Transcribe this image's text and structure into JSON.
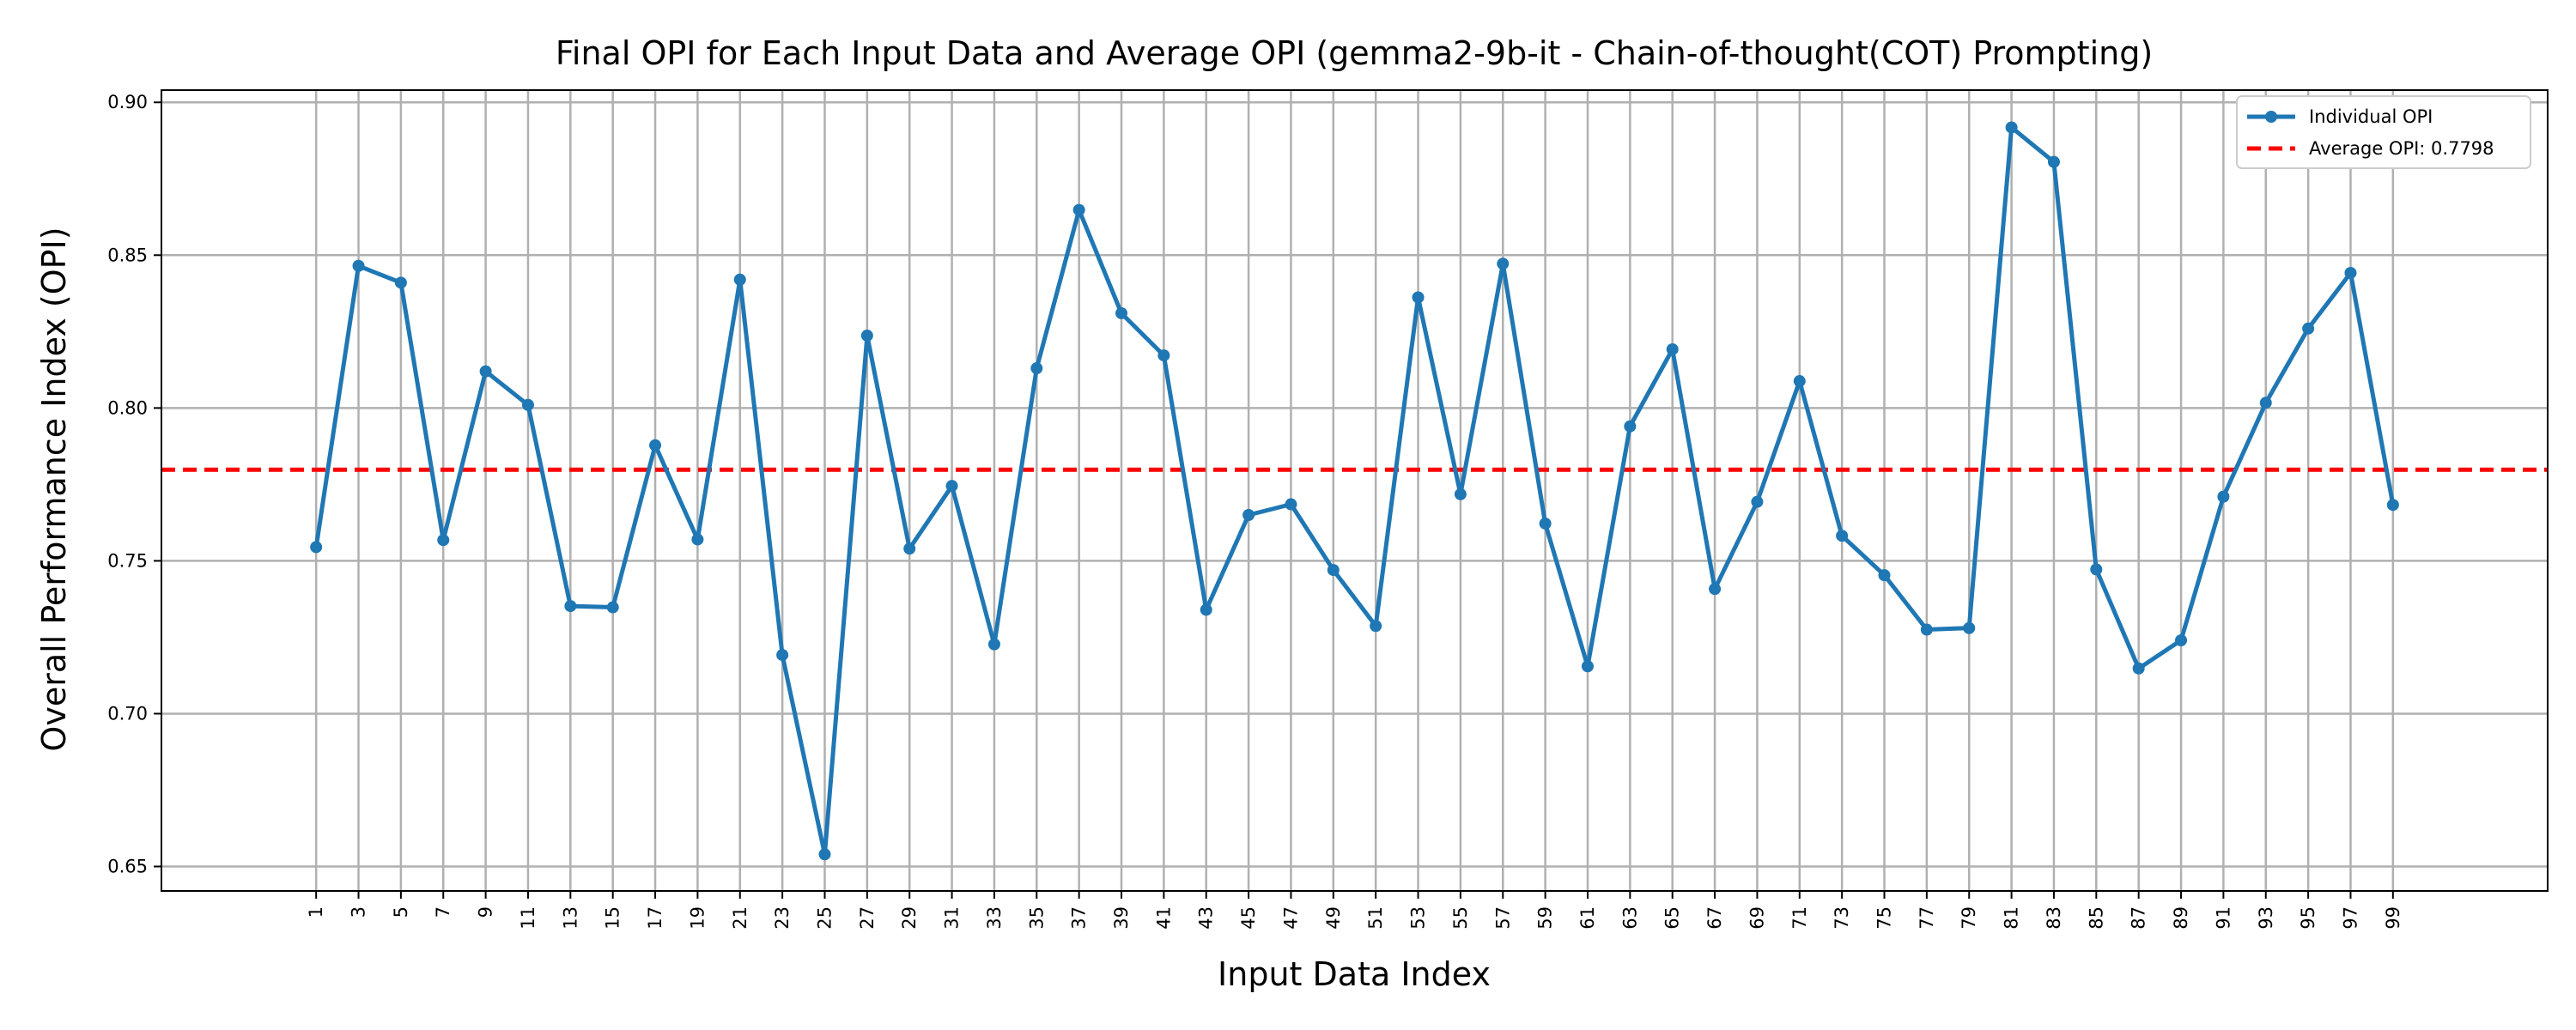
{
  "chart_data": {
    "type": "line",
    "title": "Final OPI for Each Input Data and Average OPI (gemma2-9b-it - Chain-of-thought(COT) Prompting)",
    "xlabel": "Input Data Index",
    "ylabel": "Overall Performance Index (OPI)",
    "ylim": [
      0.642,
      0.904
    ],
    "yticks": [
      0.65,
      0.7,
      0.75,
      0.8,
      0.85,
      0.9
    ],
    "ytick_labels": [
      "0.65",
      "0.70",
      "0.75",
      "0.80",
      "0.85",
      "0.90"
    ],
    "xticks": [
      1,
      3,
      5,
      7,
      9,
      11,
      13,
      15,
      17,
      19,
      21,
      23,
      25,
      27,
      29,
      31,
      33,
      35,
      37,
      39,
      41,
      43,
      45,
      47,
      49,
      51,
      53,
      55,
      57,
      59,
      61,
      63,
      65,
      67,
      69,
      71,
      73,
      75,
      77,
      79,
      81,
      83,
      85,
      87,
      89,
      91,
      93,
      95,
      97,
      99
    ],
    "grid": true,
    "legend_position": "top-right",
    "series": [
      {
        "name": "Individual OPI",
        "color": "#1f77b4",
        "x": [
          1,
          3,
          5,
          7,
          9,
          11,
          13,
          15,
          17,
          19,
          21,
          23,
          25,
          27,
          29,
          31,
          33,
          35,
          37,
          39,
          41,
          43,
          45,
          47,
          49,
          51,
          53,
          55,
          57,
          59,
          61,
          63,
          65,
          67,
          69,
          71,
          73,
          75,
          77,
          79,
          81,
          83,
          85,
          87,
          89,
          91,
          93,
          95,
          97,
          99
        ],
        "values": [
          0.7545,
          0.8465,
          0.841,
          0.7568,
          0.812,
          0.801,
          0.7352,
          0.7348,
          0.7878,
          0.757,
          0.842,
          0.7192,
          0.654,
          0.8237,
          0.754,
          0.7745,
          0.7227,
          0.813,
          0.8648,
          0.831,
          0.8172,
          0.734,
          0.765,
          0.7685,
          0.747,
          0.7287,
          0.8362,
          0.7718,
          0.8472,
          0.7622,
          0.7155,
          0.794,
          0.8192,
          0.7408,
          0.7693,
          0.8088,
          0.7582,
          0.7453,
          0.7275,
          0.728,
          0.8918,
          0.8805,
          0.7472,
          0.7148,
          0.724,
          0.771,
          0.8017,
          0.826,
          0.8442,
          0.7683
        ]
      }
    ],
    "reference_line": {
      "name": "Average OPI: 0.7798",
      "value": 0.7798,
      "color": "#ff0000"
    }
  }
}
